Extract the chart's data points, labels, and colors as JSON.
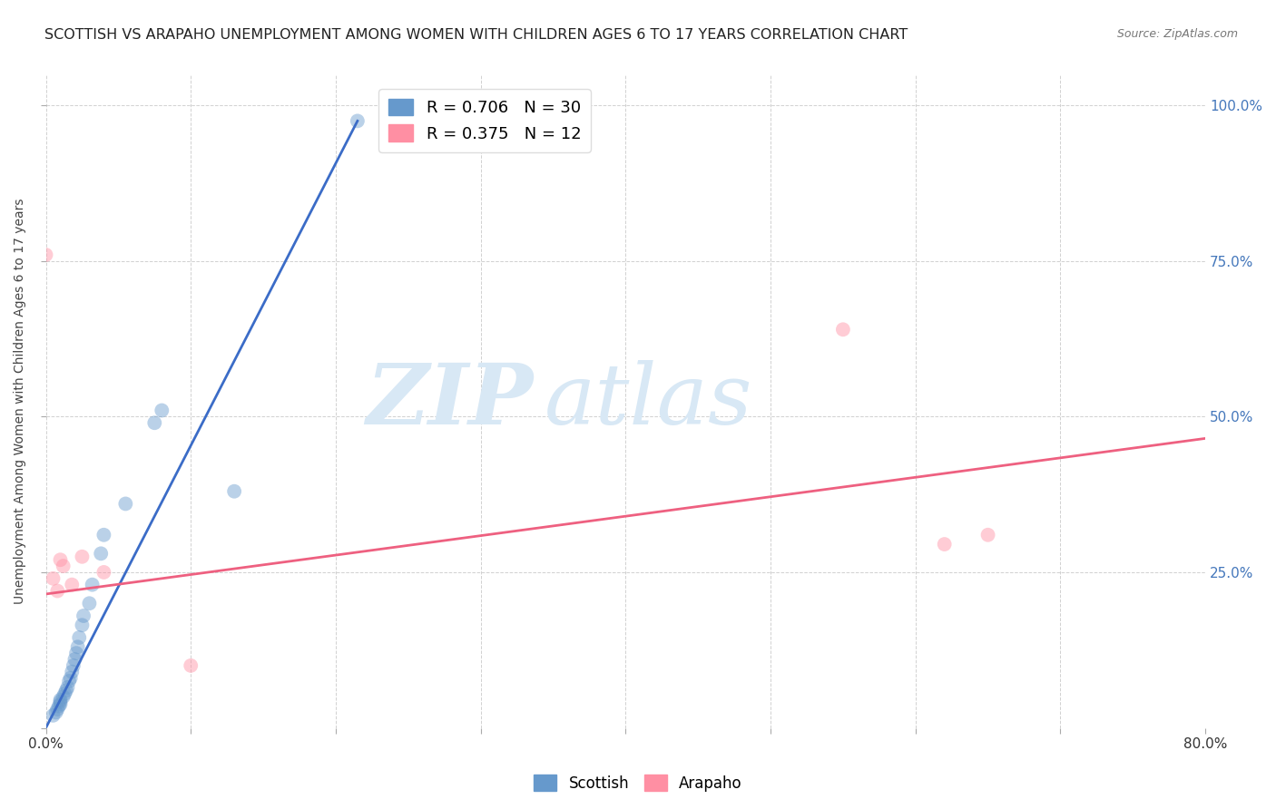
{
  "title": "SCOTTISH VS ARAPAHO UNEMPLOYMENT AMONG WOMEN WITH CHILDREN AGES 6 TO 17 YEARS CORRELATION CHART",
  "source": "Source: ZipAtlas.com",
  "ylabel": "Unemployment Among Women with Children Ages 6 to 17 years",
  "x_min": 0.0,
  "x_max": 0.8,
  "y_min": 0.0,
  "y_max": 1.05,
  "x_ticks": [
    0.0,
    0.1,
    0.2,
    0.3,
    0.4,
    0.5,
    0.6,
    0.7,
    0.8
  ],
  "x_tick_labels": [
    "0.0%",
    "",
    "",
    "",
    "",
    "",
    "",
    "",
    "80.0%"
  ],
  "y_ticks": [
    0.0,
    0.25,
    0.5,
    0.75,
    1.0
  ],
  "y_tick_labels_right": [
    "",
    "25.0%",
    "50.0%",
    "75.0%",
    "100.0%"
  ],
  "scottish_color": "#6699CC",
  "arapaho_color": "#FF8FA3",
  "scottish_line_color": "#3B6CC7",
  "arapaho_line_color": "#EE6080",
  "watermark_zip": "ZIP",
  "watermark_atlas": "atlas",
  "watermark_color": "#D8E8F5",
  "legend_R_scottish": "R = 0.706",
  "legend_N_scottish": "N = 30",
  "legend_R_arapaho": "R = 0.375",
  "legend_N_arapaho": "N = 12",
  "scottish_x": [
    0.005,
    0.007,
    0.008,
    0.009,
    0.01,
    0.01,
    0.01,
    0.012,
    0.013,
    0.014,
    0.015,
    0.016,
    0.017,
    0.018,
    0.019,
    0.02,
    0.021,
    0.022,
    0.023,
    0.025,
    0.026,
    0.03,
    0.032,
    0.038,
    0.04,
    0.055,
    0.075,
    0.08,
    0.13,
    0.215
  ],
  "scottish_y": [
    0.02,
    0.025,
    0.03,
    0.035,
    0.038,
    0.042,
    0.045,
    0.05,
    0.055,
    0.06,
    0.065,
    0.075,
    0.08,
    0.09,
    0.1,
    0.11,
    0.12,
    0.13,
    0.145,
    0.165,
    0.18,
    0.2,
    0.23,
    0.28,
    0.31,
    0.36,
    0.49,
    0.51,
    0.38,
    0.975
  ],
  "arapaho_x": [
    0.0,
    0.005,
    0.008,
    0.01,
    0.012,
    0.018,
    0.025,
    0.04,
    0.1,
    0.55,
    0.62,
    0.65
  ],
  "arapaho_y": [
    0.76,
    0.24,
    0.22,
    0.27,
    0.26,
    0.23,
    0.275,
    0.25,
    0.1,
    0.64,
    0.295,
    0.31
  ],
  "scottish_line_x": [
    0.0,
    0.215
  ],
  "scottish_line_y": [
    0.0,
    0.975
  ],
  "arapaho_line_x": [
    0.0,
    0.8
  ],
  "arapaho_line_y": [
    0.215,
    0.465
  ],
  "grid_color": "#CCCCCC",
  "background_color": "#FFFFFF",
  "marker_size": 130,
  "marker_alpha": 0.45,
  "legend_fontsize": 13,
  "title_fontsize": 11.5,
  "tick_fontsize": 11
}
